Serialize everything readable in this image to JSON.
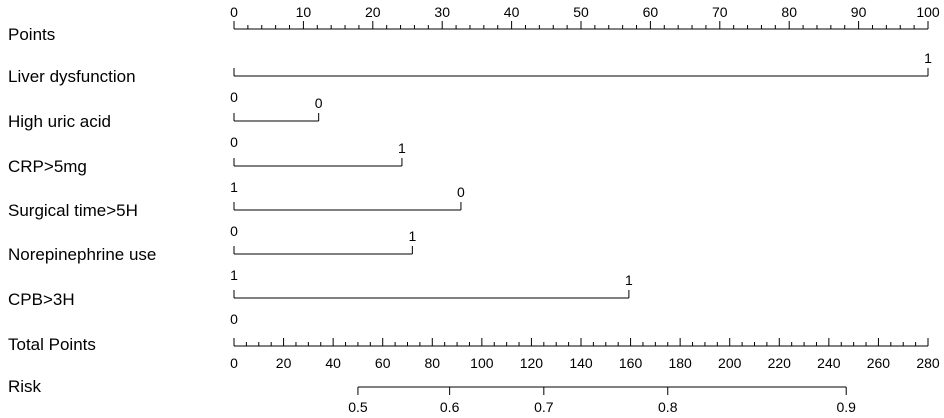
{
  "chart_data": {
    "type": "nomogram",
    "points_axis": {
      "label": "Points",
      "min": 0,
      "max": 100,
      "major_ticks": [
        "0",
        "10",
        "20",
        "30",
        "40",
        "50",
        "60",
        "70",
        "80",
        "90",
        "100"
      ],
      "minor_step": 2
    },
    "predictors": [
      {
        "name": "Liver dysfunction",
        "start_label": "0",
        "end_label": "1",
        "end_points": 100,
        "label_side": "above"
      },
      {
        "name": "High uric acid",
        "start_label": "0",
        "end_label": "0",
        "end_points": 12.2,
        "label_side": "above"
      },
      {
        "name": "CRP>5mg",
        "start_label": "1",
        "end_label": "1",
        "end_points": 24.2,
        "label_side": "above"
      },
      {
        "name": "Surgical time>5H",
        "start_label": "0",
        "end_label": "0",
        "end_points": 32.7,
        "label_side": "above"
      },
      {
        "name": "Norepinephrine use",
        "start_label": "1",
        "end_label": "1",
        "end_points": 25.7,
        "label_side": "above"
      },
      {
        "name": "CPB>3H",
        "start_label": "0",
        "end_label": "1",
        "end_points": 56.9,
        "label_side": "above"
      }
    ],
    "last_predictor_low_label": "0",
    "total_points_axis": {
      "label": "Total Points",
      "min": 0,
      "max": 280,
      "major_ticks": [
        "0",
        "20",
        "40",
        "60",
        "80",
        "100",
        "120",
        "140",
        "160",
        "180",
        "200",
        "220",
        "240",
        "260",
        "280"
      ],
      "minor_step": 5
    },
    "risk_axis": {
      "label": "Risk",
      "ticks": [
        {
          "label": "0.5",
          "total_points": 50
        },
        {
          "label": "0.6",
          "total_points": 87
        },
        {
          "label": "0.7",
          "total_points": 125
        },
        {
          "label": "0.8",
          "total_points": 175
        },
        {
          "label": "0.9",
          "total_points": 247
        }
      ]
    }
  }
}
